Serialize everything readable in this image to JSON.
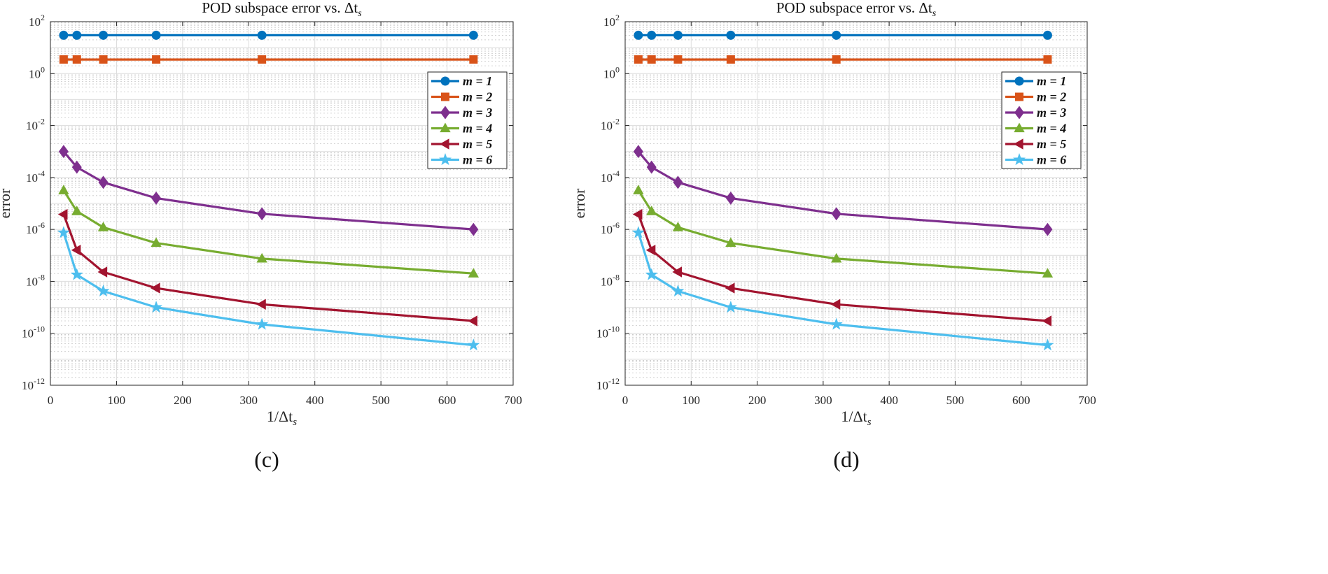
{
  "chart_data": [
    {
      "type": "line",
      "panel_label": "(c)",
      "title": "POD subspace error vs. Δt",
      "title_sub": "s",
      "xlabel": "1/Δt",
      "xlabel_sub": "s",
      "ylabel": "error",
      "yscale": "log",
      "xlim": [
        0,
        700
      ],
      "ylim_exp": [
        -12,
        2
      ],
      "xticks": [
        0,
        100,
        200,
        300,
        400,
        500,
        600,
        700
      ],
      "yticks_exp": [
        -12,
        -10,
        -8,
        -6,
        -4,
        -2,
        0,
        2
      ],
      "grid": true,
      "legend_position": "top-right",
      "x": [
        20,
        40,
        80,
        160,
        320,
        640
      ],
      "series": [
        {
          "name": "m = 1",
          "color": "#0072BD",
          "marker": "circle",
          "values": [
            30,
            30,
            30,
            30,
            30,
            30
          ]
        },
        {
          "name": "m = 2",
          "color": "#D95319",
          "marker": "square",
          "values": [
            3.5,
            3.5,
            3.5,
            3.5,
            3.5,
            3.5
          ]
        },
        {
          "name": "m = 3",
          "color": "#7E2F8E",
          "marker": "diamond",
          "values": [
            0.001,
            0.00025,
            6.5e-05,
            1.6e-05,
            4e-06,
            1e-06
          ]
        },
        {
          "name": "m = 4",
          "color": "#77AC30",
          "marker": "triangle-up",
          "values": [
            3.2e-05,
            5e-06,
            1.2e-06,
            3e-07,
            7.5e-08,
            2e-08
          ]
        },
        {
          "name": "m = 5",
          "color": "#A2142F",
          "marker": "triangle-left",
          "values": [
            3.8e-06,
            1.6e-07,
            2.3e-08,
            5.5e-09,
            1.3e-09,
            3e-10
          ]
        },
        {
          "name": "m = 6",
          "color": "#4DBEEE",
          "marker": "star",
          "values": [
            7.5e-07,
            1.8e-08,
            4.2e-09,
            1e-09,
            2.2e-10,
            3.5e-11
          ]
        }
      ]
    },
    {
      "type": "line",
      "panel_label": "(d)",
      "title": "POD subspace error vs. Δt",
      "title_sub": "s",
      "xlabel": "1/Δt",
      "xlabel_sub": "s",
      "ylabel": "error",
      "yscale": "log",
      "xlim": [
        0,
        700
      ],
      "ylim_exp": [
        -12,
        2
      ],
      "xticks": [
        0,
        100,
        200,
        300,
        400,
        500,
        600,
        700
      ],
      "yticks_exp": [
        -12,
        -10,
        -8,
        -6,
        -4,
        -2,
        0,
        2
      ],
      "grid": true,
      "legend_position": "top-right",
      "x": [
        20,
        40,
        80,
        160,
        320,
        640
      ],
      "series": [
        {
          "name": "m = 1",
          "color": "#0072BD",
          "marker": "circle",
          "values": [
            30,
            30,
            30,
            30,
            30,
            30
          ]
        },
        {
          "name": "m = 2",
          "color": "#D95319",
          "marker": "square",
          "values": [
            3.5,
            3.5,
            3.5,
            3.5,
            3.5,
            3.5
          ]
        },
        {
          "name": "m = 3",
          "color": "#7E2F8E",
          "marker": "diamond",
          "values": [
            0.001,
            0.00025,
            6.5e-05,
            1.6e-05,
            4e-06,
            1e-06
          ]
        },
        {
          "name": "m = 4",
          "color": "#77AC30",
          "marker": "triangle-up",
          "values": [
            3.2e-05,
            5e-06,
            1.2e-06,
            3e-07,
            7.5e-08,
            2e-08
          ]
        },
        {
          "name": "m = 5",
          "color": "#A2142F",
          "marker": "triangle-left",
          "values": [
            3.8e-06,
            1.6e-07,
            2.3e-08,
            5.5e-09,
            1.3e-09,
            3e-10
          ]
        },
        {
          "name": "m = 6",
          "color": "#4DBEEE",
          "marker": "star",
          "values": [
            7.5e-07,
            1.8e-08,
            4.2e-09,
            1e-09,
            2.2e-10,
            3.5e-11
          ]
        }
      ]
    }
  ]
}
